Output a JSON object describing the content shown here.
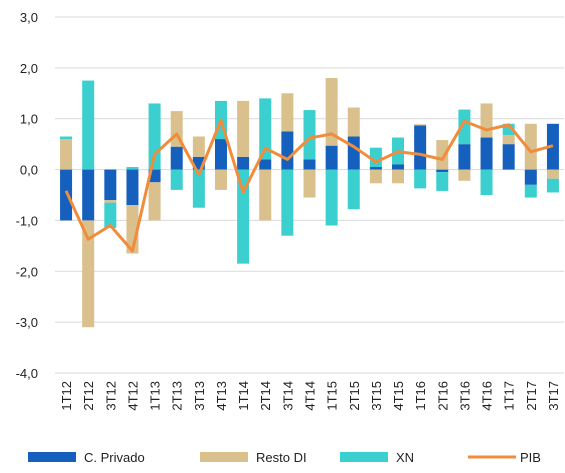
{
  "chart_data": {
    "type": "stacked-bar-line",
    "categories": [
      "1T12",
      "2T12",
      "3T12",
      "4T12",
      "1T13",
      "2T13",
      "3T13",
      "4T13",
      "1T14",
      "2T14",
      "3T14",
      "4T14",
      "1T15",
      "2T15",
      "3T15",
      "4T15",
      "1T16",
      "2T16",
      "3T16",
      "4T16",
      "1T17",
      "2T17",
      "3T17"
    ],
    "series": [
      {
        "name": "C. Privado",
        "color": "#1560bd",
        "kind": "bar",
        "values": [
          -1.0,
          -1.0,
          -0.6,
          -0.7,
          -0.25,
          0.45,
          0.25,
          0.6,
          0.25,
          0.2,
          0.75,
          0.2,
          0.47,
          0.65,
          0.05,
          0.1,
          0.87,
          -0.05,
          0.5,
          0.63,
          0.5,
          -0.3,
          0.9
        ]
      },
      {
        "name": "Resto DI",
        "color": "#d9c08c",
        "kind": "bar",
        "values": [
          0.6,
          -2.1,
          -0.05,
          -0.95,
          -0.75,
          0.7,
          0.4,
          -0.4,
          1.1,
          -1.0,
          0.75,
          -0.55,
          1.33,
          0.57,
          -0.27,
          -0.27,
          0.02,
          0.58,
          -0.22,
          0.67,
          0.18,
          0.9,
          -0.18
        ]
      },
      {
        "name": "XN",
        "color": "#3ccfcf",
        "kind": "bar",
        "values": [
          0.05,
          1.75,
          -0.5,
          0.05,
          1.3,
          -0.4,
          -0.75,
          0.75,
          -1.85,
          1.2,
          -1.3,
          0.97,
          -1.1,
          -0.78,
          0.38,
          0.53,
          -0.37,
          -0.37,
          0.68,
          -0.5,
          0.22,
          -0.25,
          -0.27
        ]
      },
      {
        "name": "PIB",
        "color": "#f08c3c",
        "kind": "line",
        "values": [
          -0.42,
          -1.37,
          -1.1,
          -1.6,
          0.3,
          0.7,
          -0.1,
          0.97,
          -0.45,
          0.42,
          0.2,
          0.62,
          0.7,
          0.45,
          0.15,
          0.35,
          0.3,
          0.2,
          0.95,
          0.78,
          0.88,
          0.35,
          0.47
        ]
      }
    ],
    "ylim": [
      -4,
      3
    ],
    "yticks": [
      {
        "value": -4,
        "label": "-4,0"
      },
      {
        "value": -3,
        "label": "-3,0"
      },
      {
        "value": -2,
        "label": "-2,0"
      },
      {
        "value": -1,
        "label": "-1,0"
      },
      {
        "value": 0,
        "label": "0,0"
      },
      {
        "value": 1,
        "label": "1,0"
      },
      {
        "value": 2,
        "label": "2,0"
      },
      {
        "value": 3,
        "label": "3,0"
      }
    ],
    "grid": true,
    "legend": "bottom"
  }
}
